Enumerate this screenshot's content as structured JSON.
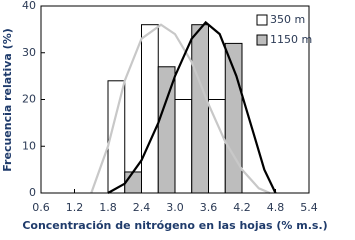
{
  "chart_data": {
    "type": "histogram",
    "xlabel": "Concentración de nitrógeno en las hojas (% m.s.)",
    "ylabel": "Frecuencia relativa (%)",
    "bins": [
      1.8,
      2.4,
      3.0,
      3.6,
      4.2
    ],
    "series": [
      {
        "name": "350 m",
        "color": "#ffffff",
        "values": [
          24,
          36,
          20,
          20
        ],
        "curve_color": "#c8c8c8",
        "curve": {
          "x": [
            1.5,
            1.8,
            2.1,
            2.4,
            2.75,
            3.0,
            3.3,
            3.6,
            3.9,
            4.2,
            4.5,
            4.7
          ],
          "y": [
            0,
            10,
            24,
            33,
            36,
            34,
            28,
            19,
            11,
            5,
            1,
            0
          ]
        }
      },
      {
        "name": "1150 m",
        "color": "#bdbdbd",
        "values": [
          4.5,
          27,
          36,
          32
        ],
        "curve_color": "#000000",
        "curve": {
          "x": [
            1.8,
            2.1,
            2.4,
            2.7,
            3.0,
            3.3,
            3.55,
            3.8,
            4.1,
            4.4,
            4.6,
            4.8
          ],
          "y": [
            0,
            2,
            7,
            15,
            25,
            33,
            36.5,
            34,
            25,
            13,
            5,
            0
          ]
        }
      }
    ],
    "xlim": [
      0.6,
      5.4
    ],
    "xticks": [
      0.6,
      1.2,
      1.8,
      2.4,
      {
        "value": 3,
        "label": "3.0"
      },
      3.6,
      4.2,
      4.8,
      5.4
    ],
    "ylim": [
      0,
      40
    ],
    "yticks": [
      0,
      10,
      20,
      30,
      40
    ],
    "legend": "upper-right"
  }
}
